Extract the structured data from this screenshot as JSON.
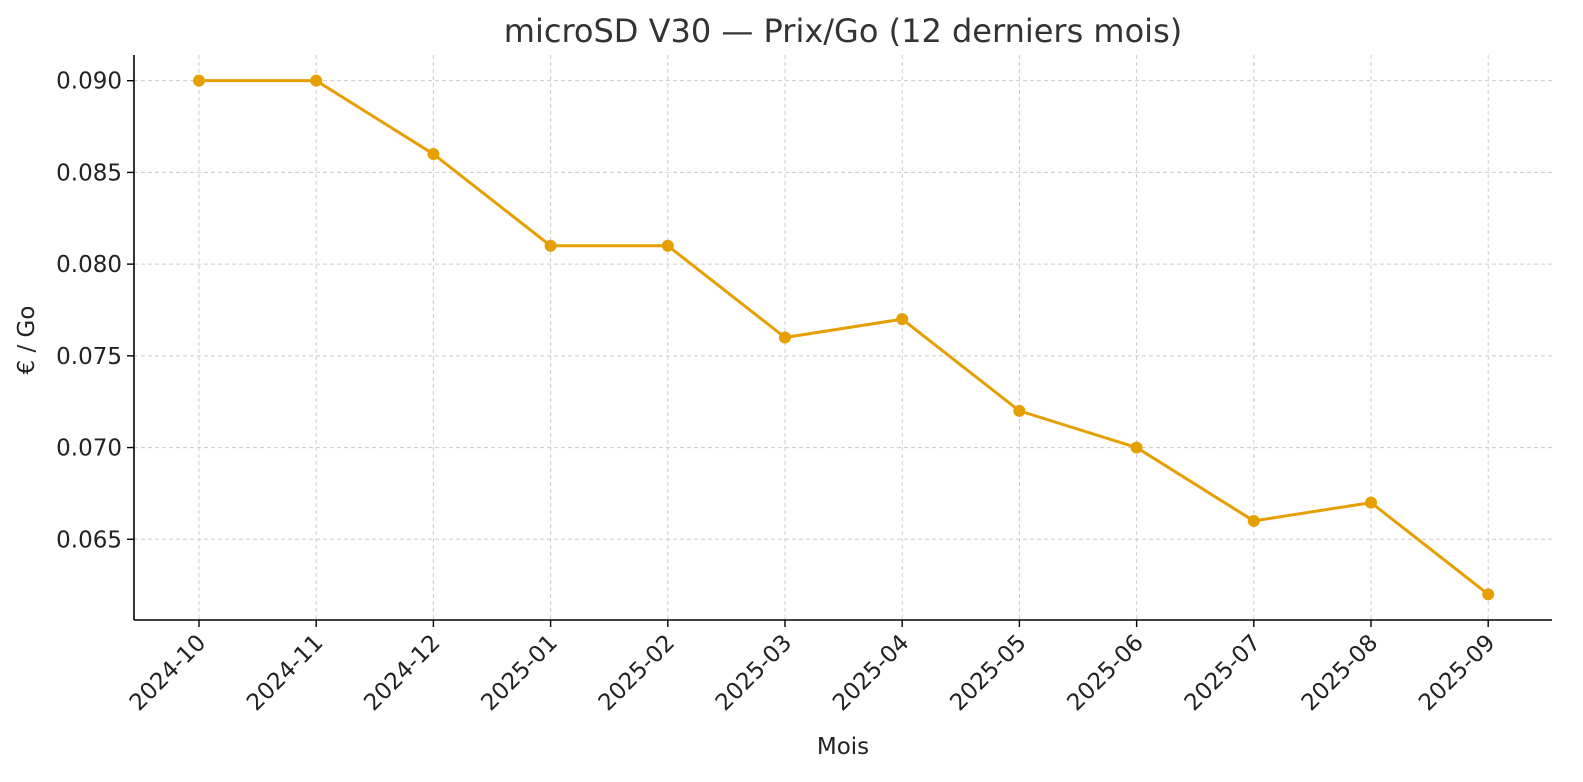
{
  "chart_data": {
    "type": "line",
    "title": "microSD V30 — Prix/Go (12 derniers mois)",
    "xlabel": "Mois",
    "ylabel": "€ / Go",
    "categories": [
      "2024-10",
      "2024-11",
      "2024-12",
      "2025-01",
      "2025-02",
      "2025-03",
      "2025-04",
      "2025-05",
      "2025-06",
      "2025-07",
      "2025-08",
      "2025-09"
    ],
    "series": [
      {
        "values": [
          0.09,
          0.09,
          0.086,
          0.081,
          0.081,
          0.076,
          0.077,
          0.072,
          0.07,
          0.066,
          0.067,
          0.062
        ]
      }
    ],
    "yticks": [
      "0.065",
      "0.070",
      "0.075",
      "0.080",
      "0.085",
      "0.090"
    ],
    "ylim": [
      0.0606,
      0.0914
    ],
    "grid": true,
    "line_color": "#E69F00"
  }
}
